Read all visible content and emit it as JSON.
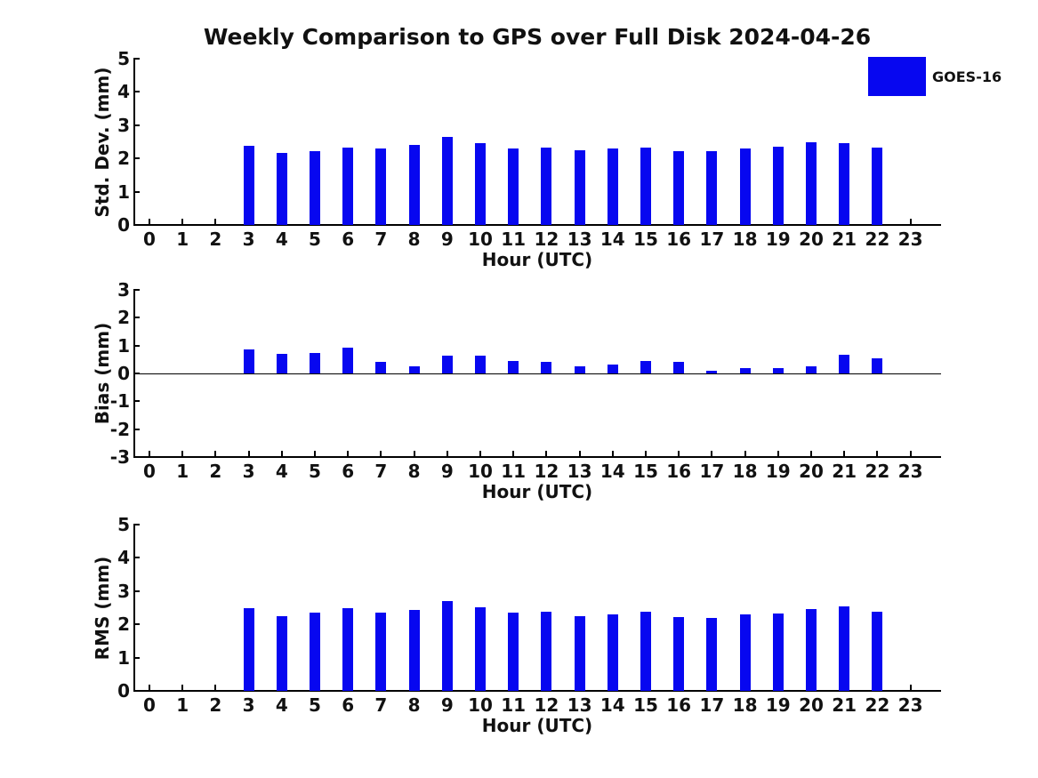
{
  "title": "Weekly Comparison to GPS over Full Disk 2024-04-26",
  "legend": {
    "position": "top-right",
    "items": [
      {
        "label": "GOES-16",
        "color": "#0707f0"
      }
    ]
  },
  "colors": {
    "bar": "#0707f0",
    "axis": "#000000",
    "text": "#111111",
    "background": "#ffffff"
  },
  "chart_data": [
    {
      "type": "bar",
      "ylabel": "Std. Dev. (mm)",
      "xlabel": "Hour (UTC)",
      "ylim": [
        0,
        5
      ],
      "yticks": [
        0,
        1,
        2,
        3,
        4,
        5
      ],
      "grid": false,
      "categories": [
        0,
        1,
        2,
        3,
        4,
        5,
        6,
        7,
        8,
        9,
        10,
        11,
        12,
        13,
        14,
        15,
        16,
        17,
        18,
        19,
        20,
        21,
        22,
        23
      ],
      "series": [
        {
          "name": "GOES-16",
          "values": [
            null,
            null,
            null,
            2.37,
            2.17,
            2.22,
            2.33,
            2.3,
            2.41,
            2.65,
            2.46,
            2.29,
            2.32,
            2.24,
            2.29,
            2.32,
            2.21,
            2.21,
            2.29,
            2.36,
            2.49,
            2.47,
            2.32,
            null
          ]
        }
      ]
    },
    {
      "type": "bar",
      "ylabel": "Bias (mm)",
      "xlabel": "Hour (UTC)",
      "ylim": [
        -3,
        3
      ],
      "yticks": [
        -3,
        -2,
        -1,
        0,
        1,
        2,
        3
      ],
      "zero_line": true,
      "grid": false,
      "categories": [
        0,
        1,
        2,
        3,
        4,
        5,
        6,
        7,
        8,
        9,
        10,
        11,
        12,
        13,
        14,
        15,
        16,
        17,
        18,
        19,
        20,
        21,
        22,
        23
      ],
      "series": [
        {
          "name": "GOES-16",
          "values": [
            null,
            null,
            null,
            0.87,
            0.7,
            0.73,
            0.92,
            0.41,
            0.27,
            0.64,
            0.63,
            0.46,
            0.4,
            0.25,
            0.32,
            0.45,
            0.4,
            0.08,
            0.2,
            0.2,
            0.25,
            0.67,
            0.53,
            null
          ]
        }
      ]
    },
    {
      "type": "bar",
      "ylabel": "RMS (mm)",
      "xlabel": "Hour (UTC)",
      "ylim": [
        0,
        5
      ],
      "yticks": [
        0,
        1,
        2,
        3,
        4,
        5
      ],
      "grid": false,
      "categories": [
        0,
        1,
        2,
        3,
        4,
        5,
        6,
        7,
        8,
        9,
        10,
        11,
        12,
        13,
        14,
        15,
        16,
        17,
        18,
        19,
        20,
        21,
        22,
        23
      ],
      "series": [
        {
          "name": "GOES-16",
          "values": [
            null,
            null,
            null,
            2.48,
            2.25,
            2.35,
            2.49,
            2.35,
            2.42,
            2.7,
            2.52,
            2.35,
            2.37,
            2.25,
            2.3,
            2.38,
            2.23,
            2.19,
            2.3,
            2.33,
            2.47,
            2.53,
            2.37,
            null
          ]
        }
      ]
    }
  ]
}
